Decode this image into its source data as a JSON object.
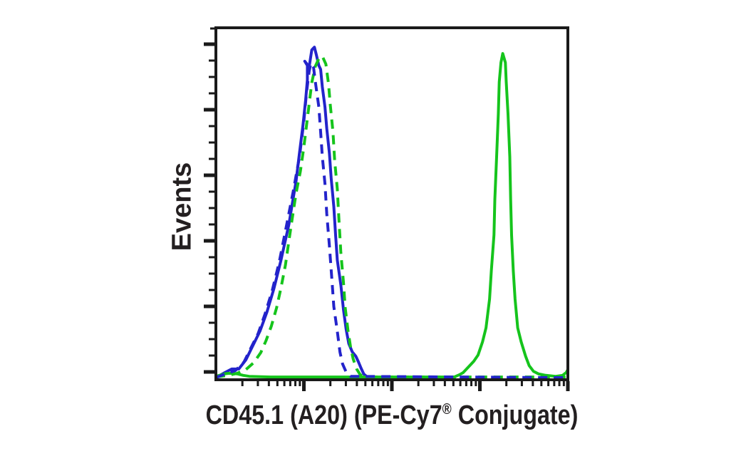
{
  "colors": {
    "blue": "#2323cb",
    "green": "#15c41c",
    "axis": "#1a1a1a",
    "text": "#231f20",
    "background": "#ffffff"
  },
  "chart_data": {
    "type": "line",
    "subtype": "flow-cytometry-histogram",
    "title": "",
    "ylabel": "Events",
    "xlabel_parts": {
      "pre": "CD45.1 (A20) (PE-Cy7",
      "registered": "®",
      "post": " Conjugate)"
    },
    "xlabel_full": "CD45.1 (A20) (PE-Cy7® Conjugate)",
    "x_axis": {
      "scale": "log",
      "decades": 4,
      "minor_log_positions": [
        2,
        3,
        4,
        5,
        6,
        7,
        8,
        9
      ],
      "tick_labels": [],
      "label_visible": true
    },
    "y_axis": {
      "scale": "linear",
      "major_tick_count": 6,
      "minors_per_interval": 3,
      "tick_labels": [],
      "range": [
        0,
        1.05
      ]
    },
    "legend": {
      "visible": false
    },
    "grid": false,
    "series": [
      {
        "name": "blue-solid",
        "color_key": "blue",
        "style": "solid",
        "points": [
          [
            0.0,
            0.002
          ],
          [
            0.1,
            0.017
          ],
          [
            0.18,
            0.028
          ],
          [
            0.26,
            0.028
          ],
          [
            0.34,
            0.055
          ],
          [
            0.42,
            0.098
          ],
          [
            0.5,
            0.141
          ],
          [
            0.58,
            0.198
          ],
          [
            0.66,
            0.269
          ],
          [
            0.74,
            0.354
          ],
          [
            0.83,
            0.461
          ],
          [
            0.87,
            0.525
          ],
          [
            0.91,
            0.588
          ],
          [
            0.95,
            0.674
          ],
          [
            0.99,
            0.759
          ],
          [
            1.02,
            0.834
          ],
          [
            1.04,
            0.893
          ],
          [
            1.04,
            0.936
          ],
          [
            1.01,
            0.949
          ],
          [
            1.06,
            0.932
          ],
          [
            1.09,
            0.983
          ],
          [
            1.12,
            0.991
          ],
          [
            1.14,
            0.97
          ],
          [
            1.17,
            0.936
          ],
          [
            1.19,
            0.925
          ],
          [
            1.21,
            0.872
          ],
          [
            1.24,
            0.812
          ],
          [
            1.26,
            0.748
          ],
          [
            1.29,
            0.674
          ],
          [
            1.31,
            0.599
          ],
          [
            1.34,
            0.514
          ],
          [
            1.36,
            0.429
          ],
          [
            1.38,
            0.354
          ],
          [
            1.42,
            0.279
          ],
          [
            1.45,
            0.205
          ],
          [
            1.48,
            0.147
          ],
          [
            1.51,
            0.104
          ],
          [
            1.55,
            0.079
          ],
          [
            1.59,
            0.066
          ],
          [
            1.62,
            0.049
          ],
          [
            1.65,
            0.03
          ],
          [
            1.68,
            0.013
          ],
          [
            1.72,
            0.004
          ]
        ]
      },
      {
        "name": "green-solid",
        "color_key": "green",
        "style": "solid",
        "points": [
          [
            0.0,
            0.006
          ],
          [
            0.04,
            0.009
          ],
          [
            0.09,
            0.013
          ],
          [
            0.14,
            0.015
          ],
          [
            0.19,
            0.015
          ],
          [
            0.25,
            0.013
          ],
          [
            0.31,
            0.009
          ],
          [
            0.38,
            0.006
          ],
          [
            0.62,
            0.004
          ],
          [
            2.71,
            0.004
          ],
          [
            2.77,
            0.011
          ],
          [
            2.81,
            0.017
          ],
          [
            2.87,
            0.034
          ],
          [
            2.93,
            0.051
          ],
          [
            2.98,
            0.07
          ],
          [
            3.03,
            0.109
          ],
          [
            3.07,
            0.151
          ],
          [
            3.11,
            0.237
          ],
          [
            3.13,
            0.322
          ],
          [
            3.16,
            0.429
          ],
          [
            3.17,
            0.535
          ],
          [
            3.19,
            0.663
          ],
          [
            3.21,
            0.791
          ],
          [
            3.22,
            0.887
          ],
          [
            3.24,
            0.945
          ],
          [
            3.26,
            0.972
          ],
          [
            3.29,
            0.945
          ],
          [
            3.3,
            0.887
          ],
          [
            3.32,
            0.791
          ],
          [
            3.34,
            0.663
          ],
          [
            3.35,
            0.535
          ],
          [
            3.36,
            0.429
          ],
          [
            3.38,
            0.322
          ],
          [
            3.4,
            0.237
          ],
          [
            3.43,
            0.151
          ],
          [
            3.47,
            0.109
          ],
          [
            3.52,
            0.066
          ],
          [
            3.56,
            0.038
          ],
          [
            3.61,
            0.021
          ],
          [
            3.67,
            0.013
          ],
          [
            3.75,
            0.009
          ],
          [
            3.86,
            0.006
          ],
          [
            3.94,
            0.009
          ],
          [
            3.98,
            0.017
          ],
          [
            4.0,
            0.026
          ]
        ]
      },
      {
        "name": "green-dashed",
        "color_key": "green",
        "style": "dashed",
        "points": [
          [
            0.0,
            0.004
          ],
          [
            0.14,
            0.009
          ],
          [
            0.24,
            0.015
          ],
          [
            0.34,
            0.026
          ],
          [
            0.43,
            0.047
          ],
          [
            0.51,
            0.077
          ],
          [
            0.57,
            0.113
          ],
          [
            0.63,
            0.156
          ],
          [
            0.69,
            0.211
          ],
          [
            0.74,
            0.271
          ],
          [
            0.79,
            0.339
          ],
          [
            0.83,
            0.412
          ],
          [
            0.87,
            0.482
          ],
          [
            0.91,
            0.552
          ],
          [
            0.96,
            0.62
          ],
          [
            1.0,
            0.693
          ],
          [
            1.03,
            0.757
          ],
          [
            1.06,
            0.821
          ],
          [
            1.09,
            0.885
          ],
          [
            1.13,
            0.934
          ],
          [
            1.17,
            0.957
          ],
          [
            1.21,
            0.964
          ],
          [
            1.25,
            0.94
          ],
          [
            1.28,
            0.881
          ],
          [
            1.3,
            0.817
          ],
          [
            1.33,
            0.738
          ],
          [
            1.35,
            0.652
          ],
          [
            1.38,
            0.567
          ],
          [
            1.4,
            0.467
          ],
          [
            1.42,
            0.375
          ],
          [
            1.45,
            0.286
          ],
          [
            1.47,
            0.211
          ],
          [
            1.5,
            0.145
          ],
          [
            1.53,
            0.094
          ],
          [
            1.56,
            0.058
          ],
          [
            1.6,
            0.028
          ],
          [
            1.64,
            0.011
          ],
          [
            1.69,
            0.004
          ],
          [
            4.0,
            0.004
          ]
        ]
      },
      {
        "name": "blue-dashed",
        "color_key": "blue",
        "style": "dashed",
        "points": [
          [
            0.0,
            0.002
          ],
          [
            0.12,
            0.015
          ],
          [
            0.22,
            0.023
          ],
          [
            0.32,
            0.049
          ],
          [
            0.4,
            0.092
          ],
          [
            0.48,
            0.134
          ],
          [
            0.56,
            0.194
          ],
          [
            0.64,
            0.262
          ],
          [
            0.72,
            0.348
          ],
          [
            0.8,
            0.454
          ],
          [
            0.88,
            0.561
          ],
          [
            0.95,
            0.663
          ],
          [
            1.0,
            0.77
          ],
          [
            1.03,
            0.855
          ],
          [
            1.06,
            0.919
          ],
          [
            1.08,
            0.943
          ],
          [
            1.11,
            0.93
          ],
          [
            1.13,
            0.887
          ],
          [
            1.17,
            0.812
          ],
          [
            1.19,
            0.738
          ],
          [
            1.21,
            0.663
          ],
          [
            1.24,
            0.582
          ],
          [
            1.26,
            0.493
          ],
          [
            1.29,
            0.397
          ],
          [
            1.32,
            0.29
          ],
          [
            1.34,
            0.215
          ],
          [
            1.38,
            0.141
          ],
          [
            1.41,
            0.079
          ],
          [
            1.44,
            0.043
          ],
          [
            1.48,
            0.019
          ],
          [
            1.53,
            0.006
          ],
          [
            4.0,
            0.002
          ]
        ]
      }
    ]
  }
}
